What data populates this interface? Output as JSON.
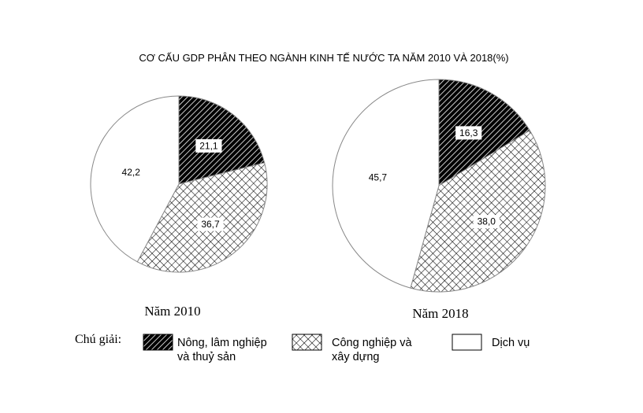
{
  "chart_data": {
    "type": "pie",
    "title": "CƠ CẤU GDP PHÂN THEO NGÀNH KINH TẾ NƯỚC TA NĂM 2010 VÀ 2018(%)",
    "categories": [
      "Nông, lâm nghiệp và thuỷ sản",
      "Công nghiệp và xây dựng",
      "Dịch vụ"
    ],
    "series": [
      {
        "name": "Năm 2010",
        "values": [
          21.1,
          36.7,
          42.2
        ],
        "labels": [
          "21,1",
          "36,7",
          "42,2"
        ]
      },
      {
        "name": "Năm 2018",
        "values": [
          16.3,
          38.0,
          45.7
        ],
        "labels": [
          "16,3",
          "38,0",
          "45,7"
        ]
      }
    ],
    "legend": {
      "heading": "Chú giải:",
      "placement": "bottom",
      "items": [
        {
          "lines": [
            "Nông, lâm nghiệp",
            "và thuỷ sản"
          ],
          "fill": "diagonal-hatch"
        },
        {
          "lines": [
            "Công nghiệp và",
            "xây dựng"
          ],
          "fill": "crosshatch"
        },
        {
          "lines": [
            "Dịch vụ"
          ],
          "fill": "blank"
        }
      ]
    },
    "colors": {
      "stroke": "#000000",
      "background": "#ffffff"
    }
  }
}
